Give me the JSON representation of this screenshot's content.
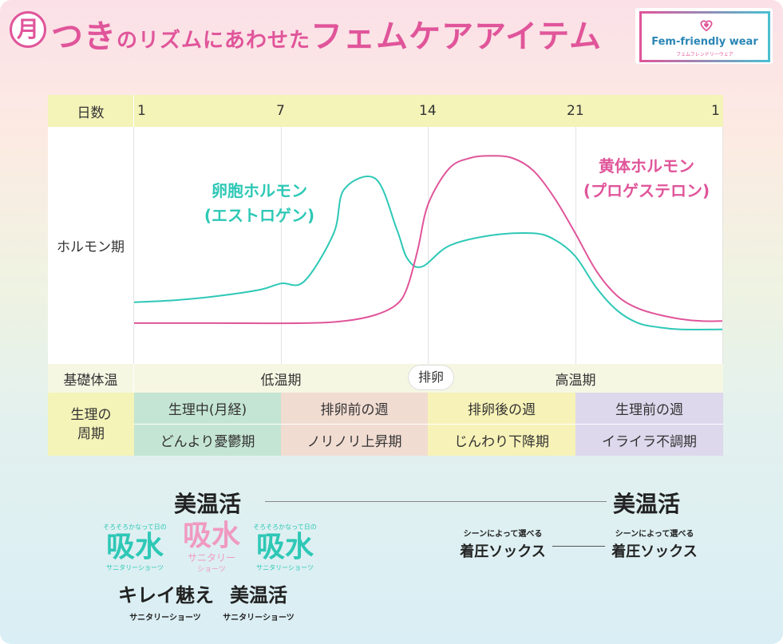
{
  "header": {
    "badge": "月",
    "title_a": "つき",
    "title_b": "のリズムに",
    "title_c": "あわせた",
    "title_d": "フェムケアアイテム",
    "logo_name": "Fem-friendly wear",
    "logo_sub": "フェムフレンドリーウェア"
  },
  "colors": {
    "pink": "#e0559a",
    "teal": "#2ec8b6",
    "yellow": "#f4f3b8",
    "menstrual": "#c4e5d3",
    "pre_ovulation": "#f1dcd2",
    "post_ovulation": "#f7f2b7",
    "premenstrual": "#ddd8ec"
  },
  "table": {
    "day_header": "日数",
    "hormone_header": "ホルモン期",
    "basal_header": "基礎体温",
    "phase_header": "生理の周期",
    "low_temp": "低温期",
    "ovulation": "排卵",
    "high_temp": "高温期",
    "phases": [
      {
        "name": "生理中(月経)",
        "mood": "どんより憂鬱期"
      },
      {
        "name": "排卵前の週",
        "mood": "ノリノリ上昇期"
      },
      {
        "name": "排卵後の週",
        "mood": "じんわり下降期"
      },
      {
        "name": "生理前の週",
        "mood": "イライラ不調期"
      }
    ]
  },
  "chart_data": {
    "type": "line",
    "title": "",
    "xlabel": "日数",
    "ylabel": "ホルモン期",
    "x_ticks": [
      "1",
      "7",
      "14",
      "21",
      "1"
    ],
    "xlim": [
      1,
      29
    ],
    "ylim": [
      0,
      100
    ],
    "series": [
      {
        "name": "卵胞ホルモン(エストロゲン)",
        "color": "#2ec8b6",
        "x": [
          1,
          3,
          5,
          7,
          8,
          9.1,
          10.5,
          11,
          12.5,
          13.5,
          14,
          14.7,
          16,
          18,
          20,
          21,
          22,
          23,
          24,
          25,
          26,
          27,
          29
        ],
        "y": [
          23,
          24,
          26,
          29,
          32,
          33,
          56,
          77,
          82,
          58,
          44,
          40,
          50,
          55,
          56,
          53,
          45,
          30,
          19,
          13,
          11,
          10,
          10
        ]
      },
      {
        "name": "黄体ホルモン(プロゲステロン)",
        "color": "#e0559a",
        "x": [
          1,
          5,
          9,
          11,
          12.5,
          13.5,
          14,
          14.5,
          15,
          16,
          17,
          18,
          19,
          20,
          21,
          22,
          23,
          24,
          25,
          26,
          27,
          28,
          29
        ],
        "y": [
          13,
          13,
          13,
          14,
          17,
          22,
          30,
          48,
          70,
          87,
          92,
          93,
          92,
          86,
          73,
          56,
          38,
          26,
          20,
          17,
          15,
          14,
          14
        ]
      }
    ]
  },
  "labels": {
    "estrogen_1": "卵胞ホルモン",
    "estrogen_2": "(エストロゲン)",
    "progesterone_1": "黄体ホルモン",
    "progesterone_2": "(プロゲステロン)"
  },
  "products": {
    "bionkatsu_1": "美温活",
    "bionkatsu_2": "美温活",
    "kyusui_small": "そろそろかなって日の",
    "kyusui_main": "吸水",
    "kyusui_sub": "サニタリーショーツ",
    "kyusui_pink_sub_1": "サニタリー",
    "kyusui_pink_sub_2": "ショーツ",
    "kirei": "キレイ魅え",
    "kirei_sub": "サニタリーショーツ",
    "bionkatsu_3": "美温活",
    "bionkatsu_3_sub": "サニタリーショーツ",
    "socks_small": "シーンによって選べる",
    "socks_main": "着圧ソックス"
  }
}
